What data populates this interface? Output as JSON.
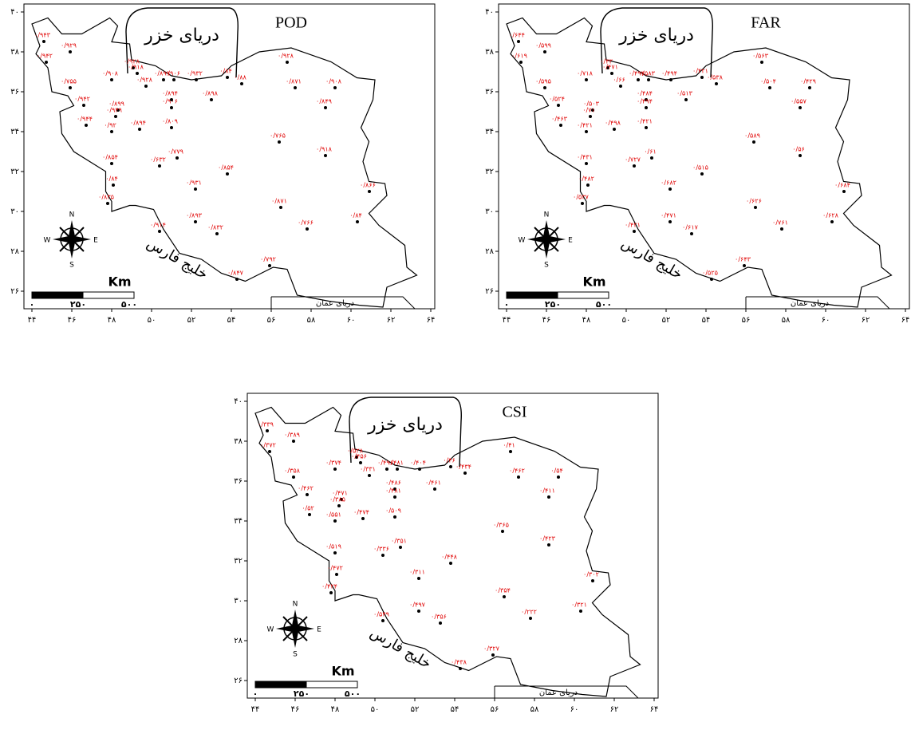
{
  "panels": [
    {
      "title": "POD",
      "stations": [
        "۰/۹۴۳",
        "۰/۹۲۹",
        "۰/۹۴۲",
        "۰/۷۵۵",
        "۰/۹۴۲",
        "۰/۹۴۴",
        "۰/۹۰۸",
        "۰/۹۲۸",
        "۰/۹۱۸",
        "۰/۹۲۸",
        "۰/۸۹۹",
        "۰/۹۰۶",
        "۰/۹۳۲",
        "۰/۸۴",
        "۰/۸۸",
        "۰/۹۲۸",
        "۰/۸۷۱",
        "۰/۹۰۸",
        "۰/۸۴۹",
        "۰/۸۹۹",
        "۰/۹۴۹",
        "۰/۸۹۴",
        "۰/۹۰۶",
        "۰/۸۹۸",
        "۰/۹۲",
        "۰/۸۹۴",
        "۰/۸۰۹",
        "۰/۸۵۴",
        "۰/۶۳۲",
        "۰/۷۷۹",
        "۰/۸۴",
        "۰/۹۳۱",
        "۰/۸۵۴",
        "۰/۷۶۵",
        "۰/۹۱۸",
        "۰/۸۶۶",
        "۰/۸۳۵",
        "۰/۸۷۱",
        "۰/۸۹۳",
        "۰/۸۳۲",
        "۰/۹۱۴",
        "۰/۷۶۶",
        "۰/۸۴",
        "۰/۸۴۷",
        "۰/۷۹۲"
      ]
    },
    {
      "title": "FAR",
      "stations": [
        "۰/۶۴۴",
        "۰/۵۹۹",
        "۰/۶۱۹",
        "۰/۵۹۵",
        "۰/۵۲۴",
        "۰/۴۶۳",
        "۰/۷۱۸",
        "۰/۴۳",
        "۰/۴۷۱",
        "۰/۶۶",
        "۰/۴۹۴",
        "۰/۵۸۳",
        "۰/۴۹۴",
        "۰/۴۲۱",
        "۰/۵۳۸",
        "۰/۵۶۳",
        "۰/۵۰۴",
        "۰/۴۲۹",
        "۰/۵۵۷",
        "۰/۵۰۳",
        "۰/۷۱",
        "۰/۴۸۴",
        "۰/۴۹۴",
        "۰/۵۱۳",
        "۰/۴۲۱",
        "۰/۴۹۸",
        "۰/۴۲۱",
        "۰/۴۳۱",
        "۰/۷۲۷",
        "۰/۶۱",
        "۰/۴۸۲",
        "۰/۶۸۲",
        "۰/۵۱۵",
        "۰/۵۸۹",
        "۰/۵۶",
        "۰/۶۸۴",
        "۰/۵۳۷",
        "۰/۶۲۶",
        "۰/۴۷۱",
        "۰/۶۱۷",
        "۰/۴۲۱",
        "۰/۷۶۱",
        "۰/۶۲۸",
        "۰/۵۲۵",
        "۰/۶۴۳"
      ]
    },
    {
      "title": "CSI",
      "stations": [
        "۰/۳۳۹",
        "۰/۳۸۹",
        "۰/۳۷۲",
        "۰/۳۵۸",
        "۰/۴۶۲",
        "۰/۵۲",
        "۰/۳۷۴",
        "۰/۵۲۸",
        "۰/۴۵۶",
        "۰/۳۳۱",
        "۰/۴۹۶",
        "۰/۴۸۱",
        "۰/۴۰۴",
        "۰/۴۶",
        "۰/۴۳۴",
        "۰/۴۱",
        "۰/۴۶۲",
        "۰/۵۴",
        "۰/۴۱۱",
        "۰/۴۷۱",
        "۰/۳۸۵",
        "۰/۴۸۶",
        "۰/۴۸۱",
        "۰/۴۶۱",
        "۰/۵۵۱",
        "۰/۴۷۴",
        "۰/۵۰۹",
        "۰/۵۱۹",
        "۰/۳۳۶",
        "۰/۳۵۱",
        "۰/۴۷۲",
        "۰/۳۱۱",
        "۰/۴۴۸",
        "۰/۳۶۵",
        "۰/۴۲۳",
        "۰/۳۰۲",
        "۰/۴۲۴",
        "۰/۳۵۴",
        "۰/۴۹۷",
        "۰/۳۵۶",
        "۰/۵۴۹",
        "۰/۲۲۲",
        "۰/۳۲۱",
        "۰/۴۳۸",
        "۰/۳۲۷"
      ]
    }
  ],
  "map_labels": {
    "caspian": "دریای خزر",
    "gulf": "خلیج فارس",
    "oman": "دریای عمان"
  },
  "scale_bar": {
    "unit": "Km",
    "labels": [
      "۰",
      "۲۵۰",
      "۵۰۰"
    ]
  },
  "compass": {
    "n": "N",
    "e": "E",
    "s": "S",
    "w": "W"
  },
  "axes": {
    "xticks": [
      {
        "value": 44,
        "label": "۴۴"
      },
      {
        "value": 46,
        "label": "۴۶"
      },
      {
        "value": 48,
        "label": "۴۸"
      },
      {
        "value": 50,
        "label": "۵۰"
      },
      {
        "value": 52,
        "label": "۵۲"
      },
      {
        "value": 54,
        "label": "۵۴"
      },
      {
        "value": 56,
        "label": "۵۶"
      },
      {
        "value": 58,
        "label": "۵۸"
      },
      {
        "value": 60,
        "label": "۶۰"
      },
      {
        "value": 62,
        "label": "۶۲"
      },
      {
        "value": 64,
        "label": "۶۴"
      }
    ],
    "yticks": [
      {
        "value": 26,
        "label": "۲۶"
      },
      {
        "value": 28,
        "label": "۲۸"
      },
      {
        "value": 30,
        "label": "۳۰"
      },
      {
        "value": 32,
        "label": "۳۲"
      },
      {
        "value": 34,
        "label": "۳۴"
      },
      {
        "value": 36,
        "label": "۳۶"
      },
      {
        "value": 38,
        "label": "۳۸"
      },
      {
        "value": 40,
        "label": "۴۰"
      }
    ]
  }
}
